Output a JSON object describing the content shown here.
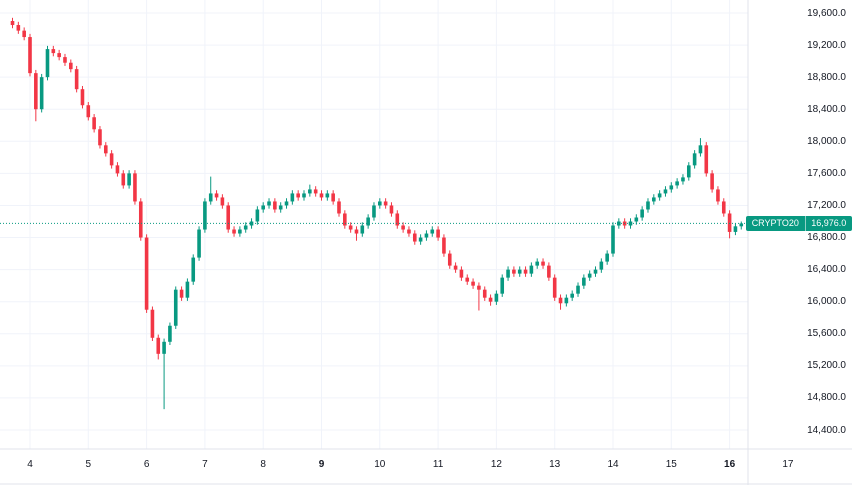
{
  "chart_data": {
    "type": "candlestick",
    "symbol": "CRYPTO20",
    "last_price": 16976.0,
    "last_price_label": "16,976.0",
    "up_color": "#089981",
    "down_color": "#F23645",
    "price_line_color": "#089981",
    "grid_color": "#f0f3fa",
    "border_color": "#e0e3eb",
    "axis_text_color": "#131722",
    "y_axis": {
      "ticks": [
        19600,
        19200,
        18800,
        18400,
        18000,
        17600,
        17200,
        16800,
        16400,
        16000,
        15600,
        15200,
        14800,
        14400
      ],
      "labels": [
        "19,600.0",
        "19,200.0",
        "18,800.0",
        "18,400.0",
        "18,000.0",
        "17,600.0",
        "17,200.0",
        "16,800.0",
        "16,400.0",
        "16,000.0",
        "15,600.0",
        "15,200.0",
        "14,800.0",
        "14,400.0"
      ],
      "min": 14400,
      "max": 19600
    },
    "x_axis": {
      "ticks": [
        {
          "label": "4",
          "day": 4,
          "bold": false
        },
        {
          "label": "5",
          "day": 5,
          "bold": false
        },
        {
          "label": "6",
          "day": 6,
          "bold": false
        },
        {
          "label": "7",
          "day": 7,
          "bold": false
        },
        {
          "label": "8",
          "day": 8,
          "bold": false
        },
        {
          "label": "9",
          "day": 9,
          "bold": true
        },
        {
          "label": "10",
          "day": 10,
          "bold": false
        },
        {
          "label": "11",
          "day": 11,
          "bold": false
        },
        {
          "label": "12",
          "day": 12,
          "bold": false
        },
        {
          "label": "13",
          "day": 13,
          "bold": false
        },
        {
          "label": "14",
          "day": 14,
          "bold": false
        },
        {
          "label": "15",
          "day": 15,
          "bold": false
        },
        {
          "label": "16",
          "day": 16,
          "bold": true
        },
        {
          "label": "17",
          "day": 17,
          "bold": false
        }
      ]
    },
    "start_day": 3.7,
    "step": 0.1,
    "ohlc": [
      [
        19500,
        19540,
        19410,
        19450
      ],
      [
        19450,
        19490,
        19340,
        19380
      ],
      [
        19380,
        19420,
        19260,
        19300
      ],
      [
        19300,
        19340,
        18810,
        18850
      ],
      [
        18850,
        18890,
        18250,
        18400
      ],
      [
        18400,
        18840,
        18360,
        18800
      ],
      [
        18800,
        19190,
        18760,
        19150
      ],
      [
        19150,
        19190,
        19060,
        19100
      ],
      [
        19100,
        19140,
        19010,
        19050
      ],
      [
        19050,
        19090,
        18940,
        18980
      ],
      [
        18980,
        19020,
        18860,
        18900
      ],
      [
        18900,
        18940,
        18610,
        18650
      ],
      [
        18650,
        18690,
        18410,
        18450
      ],
      [
        18450,
        18490,
        18260,
        18300
      ],
      [
        18300,
        18340,
        18110,
        18150
      ],
      [
        18150,
        18190,
        17910,
        17950
      ],
      [
        17950,
        17990,
        17810,
        17850
      ],
      [
        17850,
        17890,
        17660,
        17700
      ],
      [
        17700,
        17740,
        17560,
        17600
      ],
      [
        17600,
        17640,
        17410,
        17450
      ],
      [
        17450,
        17640,
        17410,
        17600
      ],
      [
        17600,
        17640,
        17210,
        17250
      ],
      [
        17250,
        17290,
        16760,
        16800
      ],
      [
        16800,
        16840,
        15860,
        15900
      ],
      [
        15900,
        15940,
        15510,
        15550
      ],
      [
        15550,
        15590,
        15280,
        15350
      ],
      [
        15350,
        15540,
        14660,
        15500
      ],
      [
        15500,
        15740,
        15460,
        15700
      ],
      [
        15700,
        16190,
        15660,
        16150
      ],
      [
        16150,
        16190,
        16010,
        16050
      ],
      [
        16050,
        16290,
        16010,
        16250
      ],
      [
        16250,
        16590,
        16210,
        16550
      ],
      [
        16550,
        16940,
        16510,
        16900
      ],
      [
        16900,
        17290,
        16860,
        17250
      ],
      [
        17250,
        17560,
        17210,
        17350
      ],
      [
        17350,
        17390,
        17260,
        17300
      ],
      [
        17300,
        17340,
        17160,
        17200
      ],
      [
        17200,
        17240,
        16860,
        16900
      ],
      [
        16900,
        16940,
        16810,
        16850
      ],
      [
        16850,
        16940,
        16810,
        16900
      ],
      [
        16900,
        16990,
        16860,
        16950
      ],
      [
        16950,
        17040,
        16910,
        17000
      ],
      [
        17000,
        17190,
        16960,
        17150
      ],
      [
        17150,
        17240,
        17110,
        17200
      ],
      [
        17200,
        17290,
        17160,
        17250
      ],
      [
        17250,
        17290,
        17110,
        17150
      ],
      [
        17150,
        17240,
        17110,
        17200
      ],
      [
        17200,
        17290,
        17160,
        17250
      ],
      [
        17250,
        17390,
        17210,
        17350
      ],
      [
        17350,
        17390,
        17260,
        17300
      ],
      [
        17300,
        17390,
        17260,
        17350
      ],
      [
        17350,
        17460,
        17310,
        17400
      ],
      [
        17400,
        17440,
        17310,
        17350
      ],
      [
        17350,
        17390,
        17260,
        17300
      ],
      [
        17300,
        17390,
        17260,
        17350
      ],
      [
        17350,
        17390,
        17210,
        17250
      ],
      [
        17250,
        17290,
        17060,
        17100
      ],
      [
        17100,
        17140,
        16910,
        16950
      ],
      [
        16950,
        16990,
        16860,
        16900
      ],
      [
        16900,
        16940,
        16760,
        16850
      ],
      [
        16850,
        16990,
        16810,
        16950
      ],
      [
        16950,
        17090,
        16910,
        17050
      ],
      [
        17050,
        17240,
        17010,
        17200
      ],
      [
        17200,
        17290,
        17160,
        17250
      ],
      [
        17250,
        17290,
        17160,
        17200
      ],
      [
        17200,
        17240,
        17060,
        17100
      ],
      [
        17100,
        17140,
        16910,
        16950
      ],
      [
        16950,
        16990,
        16860,
        16900
      ],
      [
        16900,
        16940,
        16810,
        16850
      ],
      [
        16850,
        16890,
        16710,
        16750
      ],
      [
        16750,
        16840,
        16710,
        16800
      ],
      [
        16800,
        16890,
        16760,
        16850
      ],
      [
        16850,
        16940,
        16810,
        16900
      ],
      [
        16900,
        16940,
        16760,
        16800
      ],
      [
        16800,
        16840,
        16560,
        16600
      ],
      [
        16600,
        16640,
        16410,
        16450
      ],
      [
        16450,
        16490,
        16360,
        16400
      ],
      [
        16400,
        16440,
        16260,
        16300
      ],
      [
        16300,
        16340,
        16210,
        16250
      ],
      [
        16250,
        16290,
        16160,
        16200
      ],
      [
        16200,
        16240,
        15890,
        16150
      ],
      [
        16150,
        16190,
        16010,
        16050
      ],
      [
        16050,
        16090,
        15950,
        16000
      ],
      [
        16000,
        16140,
        15960,
        16100
      ],
      [
        16100,
        16340,
        16060,
        16300
      ],
      [
        16300,
        16440,
        16260,
        16400
      ],
      [
        16400,
        16440,
        16310,
        16350
      ],
      [
        16350,
        16440,
        16310,
        16400
      ],
      [
        16400,
        16440,
        16310,
        16350
      ],
      [
        16350,
        16490,
        16310,
        16450
      ],
      [
        16450,
        16540,
        16410,
        16500
      ],
      [
        16500,
        16540,
        16410,
        16450
      ],
      [
        16450,
        16490,
        16260,
        16300
      ],
      [
        16300,
        16340,
        16010,
        16050
      ],
      [
        16050,
        16090,
        15900,
        15980
      ],
      [
        15980,
        16090,
        15940,
        16050
      ],
      [
        16050,
        16140,
        16010,
        16100
      ],
      [
        16100,
        16240,
        16060,
        16200
      ],
      [
        16200,
        16340,
        16160,
        16300
      ],
      [
        16300,
        16390,
        16260,
        16350
      ],
      [
        16350,
        16440,
        16310,
        16400
      ],
      [
        16400,
        16540,
        16360,
        16500
      ],
      [
        16500,
        16640,
        16460,
        16600
      ],
      [
        16600,
        16990,
        16560,
        16950
      ],
      [
        16950,
        17040,
        16910,
        17000
      ],
      [
        17000,
        17040,
        16910,
        16950
      ],
      [
        16950,
        17040,
        16910,
        17000
      ],
      [
        17000,
        17090,
        16960,
        17050
      ],
      [
        17050,
        17190,
        17010,
        17150
      ],
      [
        17150,
        17290,
        17110,
        17250
      ],
      [
        17250,
        17340,
        17210,
        17300
      ],
      [
        17300,
        17390,
        17260,
        17350
      ],
      [
        17350,
        17440,
        17310,
        17400
      ],
      [
        17400,
        17490,
        17360,
        17450
      ],
      [
        17450,
        17540,
        17410,
        17500
      ],
      [
        17500,
        17590,
        17460,
        17550
      ],
      [
        17550,
        17740,
        17510,
        17700
      ],
      [
        17700,
        17890,
        17660,
        17850
      ],
      [
        17850,
        18040,
        17810,
        17950
      ],
      [
        17950,
        17990,
        17560,
        17600
      ],
      [
        17600,
        17640,
        17360,
        17400
      ],
      [
        17400,
        17440,
        17210,
        17250
      ],
      [
        17250,
        17290,
        17060,
        17100
      ],
      [
        17100,
        17140,
        16790,
        16870
      ],
      [
        16870,
        16980,
        16830,
        16940
      ],
      [
        16940,
        17000,
        16900,
        16976
      ]
    ]
  }
}
